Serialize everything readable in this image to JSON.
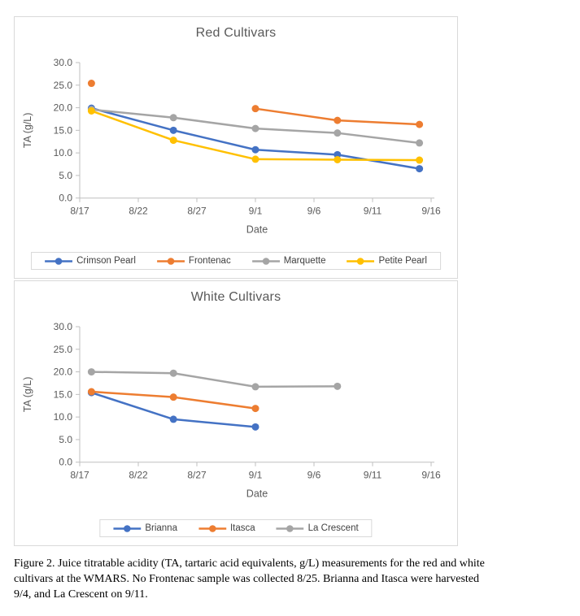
{
  "figure": {
    "caption_lines": [
      "Figure 2. Juice titratable acidity (TA, tartaric acid equivalents, g/L) measurements for the red and white",
      "cultivars at the WMARS. No Frontenac sample was collected 8/25. Brianna and Itasca were harvested",
      "9/4, and La Crescent on 9/11."
    ]
  },
  "colors": {
    "axis_text": "#595959",
    "axis_line": "#bfbfbf",
    "chart_border": "#d9d9d9",
    "series_blue": "#4472C4",
    "series_orange": "#ED7D31",
    "series_gray": "#A5A5A5",
    "series_yellow": "#FFC000"
  },
  "chart_data": [
    {
      "type": "line",
      "title": "Red Cultivars",
      "xlabel": "Date",
      "ylabel": "TA (g/L)",
      "ylim": [
        0,
        30
      ],
      "grid": false,
      "legend_position": "bottom",
      "y_ticks": [
        "0.0",
        "5.0",
        "10.0",
        "15.0",
        "20.0",
        "25.0",
        "30.0"
      ],
      "x_ticks": {
        "labels": [
          "8/17",
          "8/22",
          "8/27",
          "9/1",
          "9/6",
          "9/11",
          "9/16"
        ],
        "days": [
          0,
          5,
          10,
          15,
          20,
          25,
          30
        ]
      },
      "categories": [
        "8/18",
        "8/25",
        "9/1",
        "9/8",
        "9/15"
      ],
      "category_days": [
        1,
        8,
        15,
        22,
        29
      ],
      "series": [
        {
          "name": "Crimson Pearl",
          "color": "#4472C4",
          "values": [
            19.9,
            15.0,
            10.7,
            9.6,
            6.5
          ]
        },
        {
          "name": "Frontenac",
          "color": "#ED7D31",
          "values": [
            25.4,
            null,
            19.8,
            17.2,
            16.3
          ]
        },
        {
          "name": "Marquette",
          "color": "#A5A5A5",
          "values": [
            19.6,
            17.8,
            15.4,
            14.4,
            12.2
          ]
        },
        {
          "name": "Petite Pearl",
          "color": "#FFC000",
          "values": [
            19.3,
            12.8,
            8.6,
            8.5,
            8.4
          ]
        }
      ]
    },
    {
      "type": "line",
      "title": "White Cultivars",
      "xlabel": "Date",
      "ylabel": "TA (g/L)",
      "ylim": [
        0,
        30
      ],
      "grid": false,
      "legend_position": "bottom",
      "y_ticks": [
        "0.0",
        "5.0",
        "10.0",
        "15.0",
        "20.0",
        "25.0",
        "30.0"
      ],
      "x_ticks": {
        "labels": [
          "8/17",
          "8/22",
          "8/27",
          "9/1",
          "9/6",
          "9/11",
          "9/16"
        ],
        "days": [
          0,
          5,
          10,
          15,
          20,
          25,
          30
        ]
      },
      "categories": [
        "8/18",
        "8/25",
        "9/1",
        "9/8"
      ],
      "category_days": [
        1,
        8,
        15,
        22
      ],
      "series": [
        {
          "name": "Brianna",
          "color": "#4472C4",
          "values": [
            15.4,
            9.5,
            7.8,
            null
          ]
        },
        {
          "name": "Itasca",
          "color": "#ED7D31",
          "values": [
            15.6,
            14.4,
            11.9,
            null
          ]
        },
        {
          "name": "La Crescent",
          "color": "#A5A5A5",
          "values": [
            20.0,
            19.7,
            16.7,
            16.8
          ]
        }
      ]
    }
  ]
}
